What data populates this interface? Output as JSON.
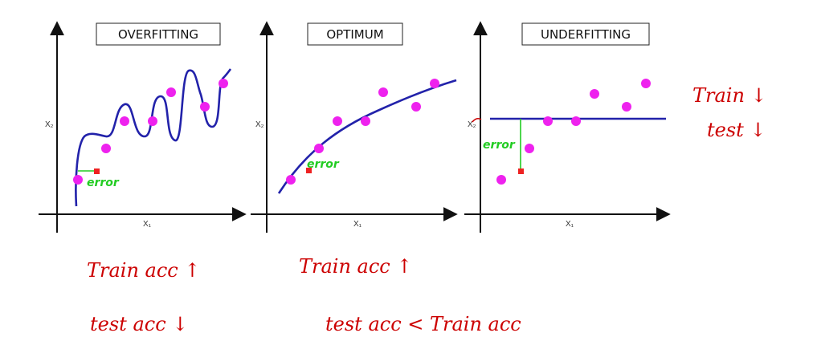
{
  "panels": [
    {
      "title": "OVERFITTING",
      "xlabel": "X₁",
      "ylabel": "X₂",
      "error_label": "error"
    },
    {
      "title": "OPTIMUM",
      "xlabel": "X₁",
      "ylabel": "X₂",
      "error_label": "error"
    },
    {
      "title": "UNDERFITTING",
      "xlabel": "X₁",
      "ylabel": "X₂",
      "error_label": "error"
    }
  ],
  "notes": {
    "overfit_train": "Train acc ↑",
    "overfit_test": "test acc ↓",
    "optimum_train": "Train acc ↑",
    "optimum_test": "test acc < Train acc",
    "underfit_train": "Train ↓",
    "underfit_test": "test ↓"
  },
  "colors": {
    "curve": "#2222aa",
    "points": "#ee22ee",
    "error_marker": "#ee2222",
    "error_line": "#22cc22",
    "handwriting": "#cc0000"
  }
}
